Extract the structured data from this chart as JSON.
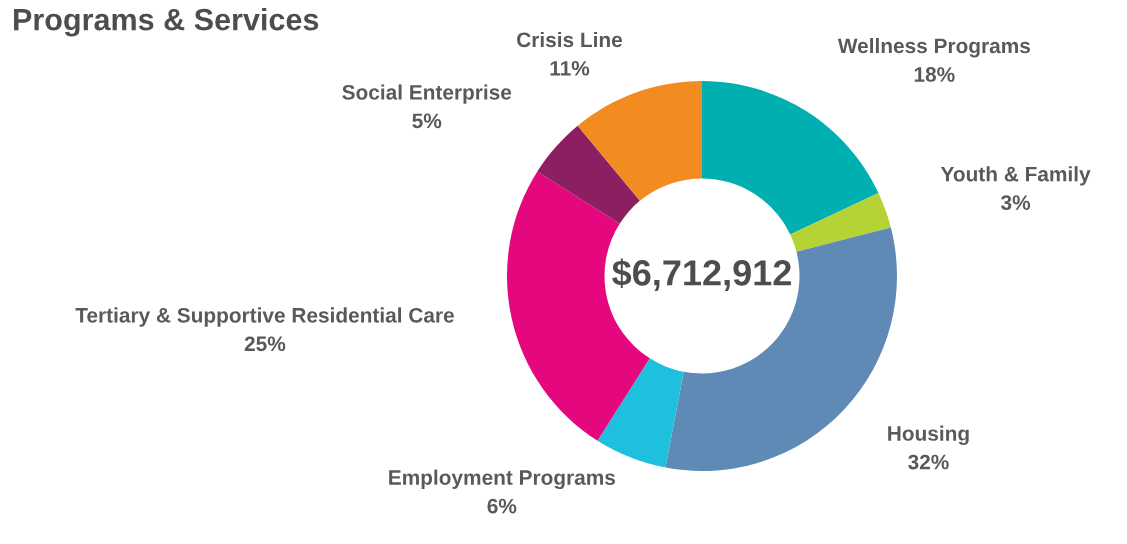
{
  "chart_data": {
    "type": "donut",
    "title": "Programs & Services",
    "categories": [
      "Wellness Programs",
      "Youth & Family",
      "Housing",
      "Employment Programs",
      "Tertiary & Supportive Residential Care",
      "Social Enterprise",
      "Crisis Line"
    ],
    "values": [
      18,
      3,
      32,
      6,
      25,
      5,
      11
    ],
    "value_labels": [
      "18%",
      "3%",
      "32%",
      "6%",
      "25%",
      "5%",
      "11%"
    ],
    "colors": [
      "#00b0b0",
      "#b5d334",
      "#5f8ab5",
      "#1ec0dd",
      "#e4077e",
      "#8b1f62",
      "#f28c20"
    ],
    "annotations": [
      "$6,712,912"
    ],
    "legend": false
  }
}
